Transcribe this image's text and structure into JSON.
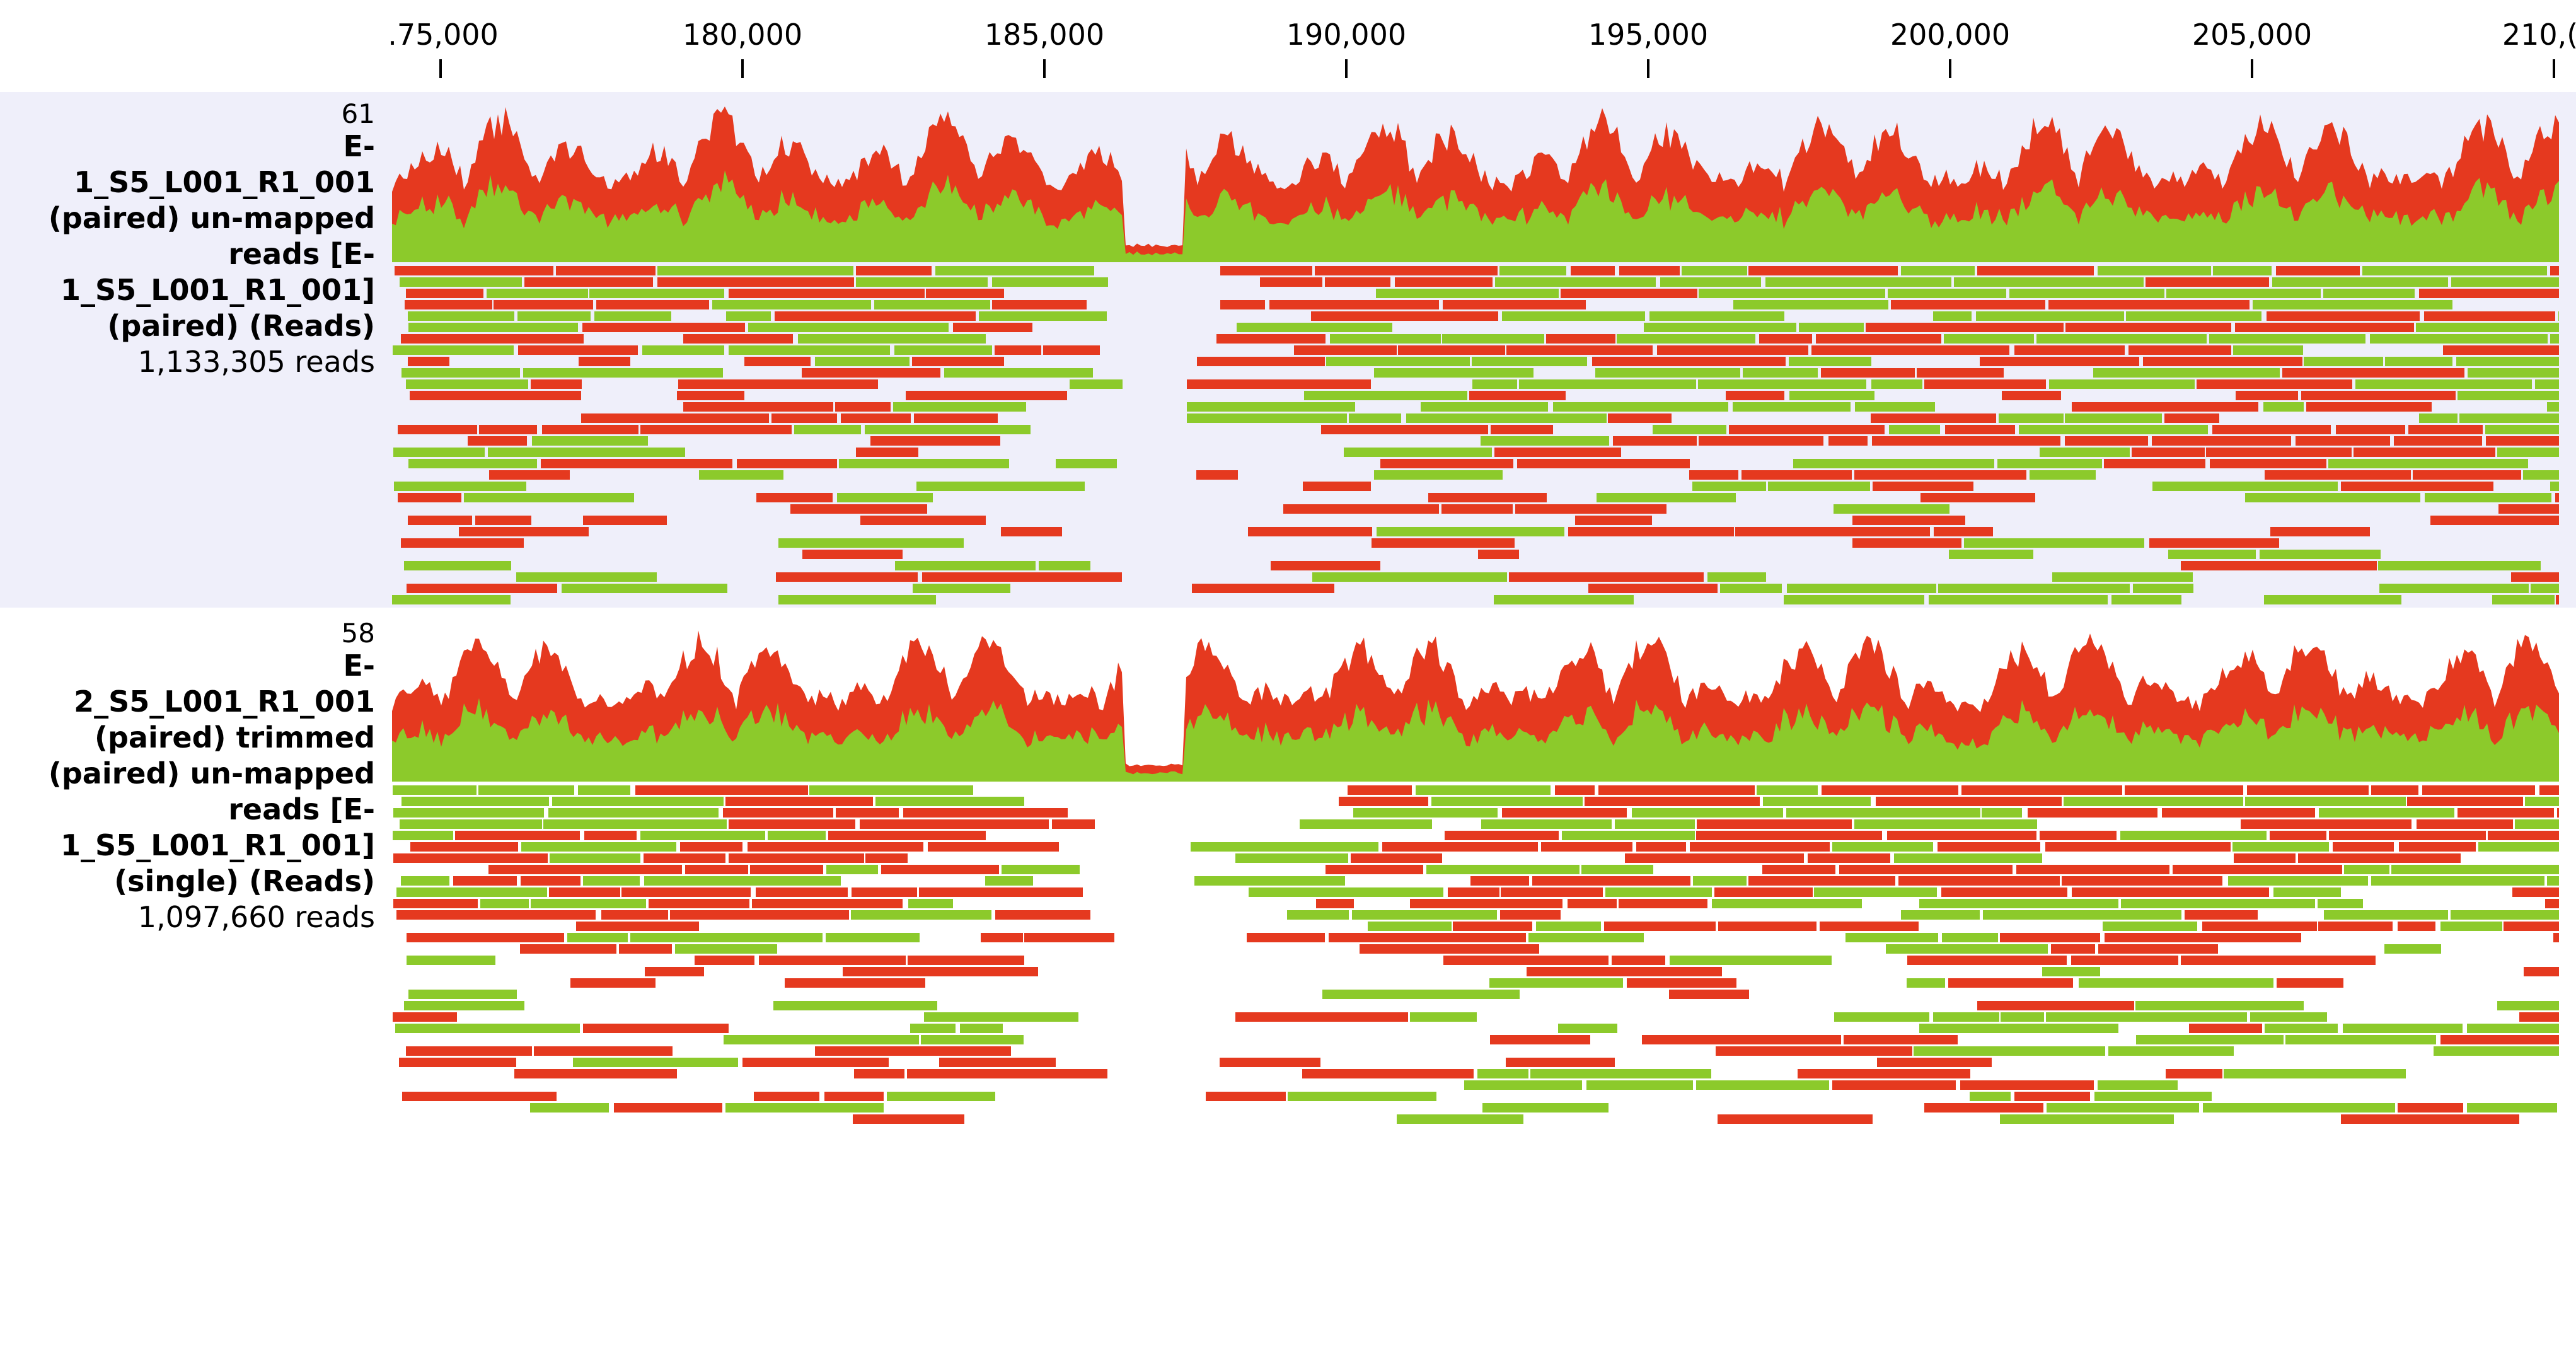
{
  "ruler": {
    "ticks": [
      {
        "label": ".75,000"
      },
      {
        "label": "180,000"
      },
      {
        "label": "185,000"
      },
      {
        "label": "190,000"
      },
      {
        "label": "195,000"
      },
      {
        "label": "200,000"
      },
      {
        "label": "205,000"
      },
      {
        "label": "210,("
      }
    ]
  },
  "tracks": [
    {
      "max_value": "61",
      "label_lines": [
        "E-",
        "1_S5_L001_R1_001",
        "(paired) un-mapped",
        "reads [E-",
        "1_S5_L001_R1_001]",
        "(paired) (Reads)"
      ],
      "reads_count": "1,133,305 reads"
    },
    {
      "max_value": "58",
      "label_lines": [
        "E-",
        "2_S5_L001_R1_001",
        "(paired) trimmed",
        "(paired) un-mapped",
        "reads [E-",
        "1_S5_L001_R1_001]",
        "(single) (Reads)"
      ],
      "reads_count": "1,097,660 reads"
    }
  ],
  "colors": {
    "track1_background": "#efeffa",
    "forward_read": "#e5391f",
    "reverse_read": "#8cca2b",
    "mismatch_a": "#5b6fd6",
    "mismatch_b": "#f2f23a",
    "ruler_text": "#000000"
  }
}
